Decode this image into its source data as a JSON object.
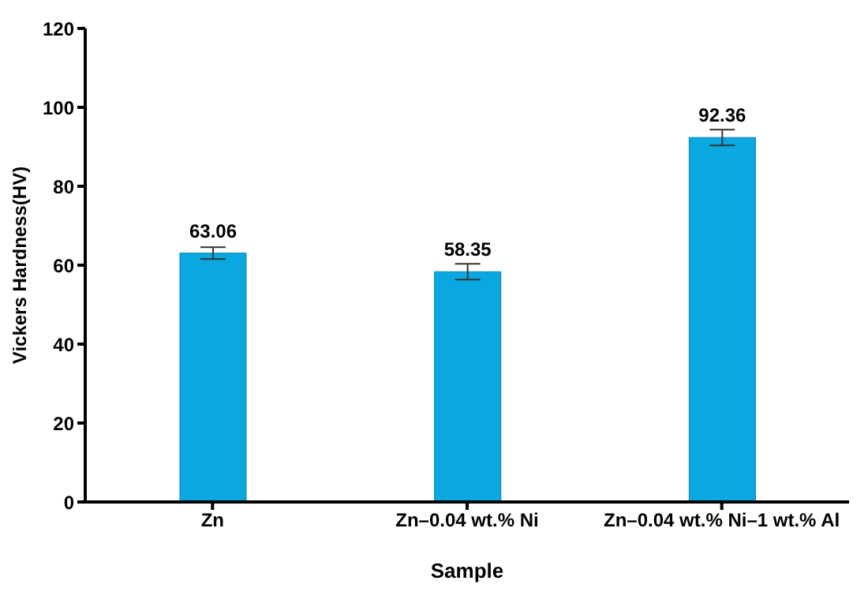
{
  "chart_data": {
    "type": "bar",
    "xlabel": "Sample",
    "ylabel": "Vickers Hardness(HV)",
    "categories": [
      "Zn",
      "Zn–0.04 wt.% Ni",
      "Zn–0.04 wt.% Ni–1 wt.% Al"
    ],
    "values": [
      63.06,
      58.35,
      92.36
    ],
    "errors": [
      1.5,
      2,
      2
    ],
    "color": "#0aa8e0",
    "data_labels": true,
    "ylim": [
      0,
      120
    ],
    "yticks": [
      0,
      20,
      40,
      60,
      80,
      100,
      120
    ],
    "grid": false,
    "legend": false
  }
}
